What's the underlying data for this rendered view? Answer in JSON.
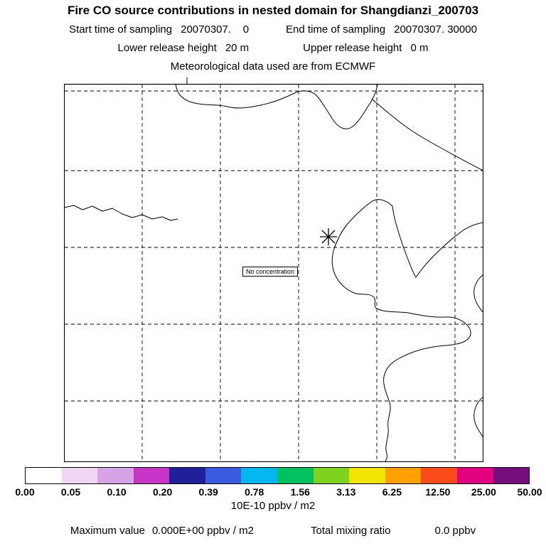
{
  "header": {
    "title": "Fire CO source contributions in nested domain for Shangdianzi_200703",
    "sampling": {
      "start_label": "Start time of sampling",
      "start_value": "20070307.    0",
      "end_label": "End time of sampling",
      "end_value": "20070307. 30000"
    },
    "release": {
      "lower_label": "Lower release height",
      "lower_value": "20 m",
      "upper_label": "Upper release height",
      "upper_value": "0 m"
    },
    "met_line": "Meteorological data used are from ECMWF"
  },
  "map": {
    "annotation": "No concentration",
    "marker": {
      "symbol": "asterisk",
      "meaning": "receptor station"
    }
  },
  "colorbar": {
    "colors": [
      "#ffffff",
      "#f0d6f2",
      "#d7a2e6",
      "#c735c7",
      "#20209b",
      "#3a5ae0",
      "#00b7ef",
      "#00c060",
      "#7ed321",
      "#f0e400",
      "#ffa000",
      "#fb4b19",
      "#e00080",
      "#760f7e"
    ],
    "ticks": [
      "0.00",
      "0.05",
      "0.10",
      "0.20",
      "0.39",
      "0.78",
      "1.56",
      "3.13",
      "6.25",
      "12.50",
      "25.00",
      "50.00"
    ],
    "units": "10E-10 ppbv / m2"
  },
  "footer": {
    "maximum_label": "Maximum value",
    "maximum_value": "0.000E+00 ppbv / m2",
    "mixing_label": "Total mixing ratio",
    "mixing_value": "0.0 ppbv"
  },
  "chart_data": {
    "type": "heatmap",
    "subtype": "geographic source-contribution map (model footprint plot)",
    "title": "Fire CO source contributions in nested domain for Shangdianzi_200703",
    "start_time_of_sampling": "20070307. 0",
    "end_time_of_sampling": "20070307. 30000",
    "lower_release_height_m": 20,
    "upper_release_height_m": 0,
    "meteorological_data": "ECMWF",
    "units": "10E-10 ppbv / m2",
    "colorbar_tick_labels": [
      "0.00",
      "0.05",
      "0.10",
      "0.20",
      "0.39",
      "0.78",
      "1.56",
      "3.13",
      "6.25",
      "12.50",
      "25.00",
      "50.00"
    ],
    "colorbar_tick_values": [
      0.0,
      0.05,
      0.1,
      0.2,
      0.39,
      0.78,
      1.56,
      3.13,
      6.25,
      12.5,
      25.0,
      50.0
    ],
    "values": "no gridded concentration shown (field is all zero)",
    "maximum_value": "0.000E+00 ppbv / m2",
    "total_mixing_ratio": "0.0 ppbv",
    "annotations": [
      "No concentration"
    ],
    "station_marker": {
      "symbol": "asterisk",
      "x_frac": 0.63,
      "y_frac": 0.4
    },
    "grid": "dashed lat-lon grid, unlabeled",
    "legend_position": "bottom horizontal colorbar"
  }
}
